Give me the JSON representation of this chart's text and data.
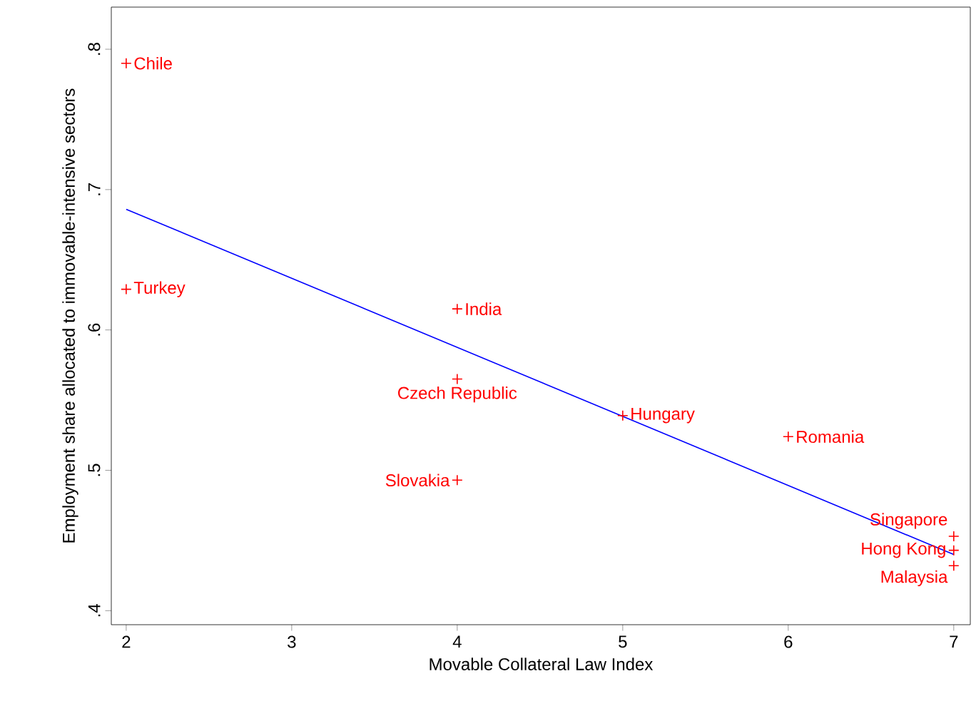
{
  "chart_data": {
    "type": "scatter",
    "xlabel": "Movable Collateral Law Index",
    "ylabel": "Employment share allocated to immovable-intensive sectors",
    "xlim": [
      1.91,
      7.1
    ],
    "ylim": [
      0.39,
      0.83
    ],
    "xticks": [
      2,
      3,
      4,
      5,
      6,
      7
    ],
    "yticks": [
      {
        "value": 0.4,
        "label": ".4"
      },
      {
        "value": 0.5,
        "label": ".5"
      },
      {
        "value": 0.6,
        "label": ".6"
      },
      {
        "value": 0.7,
        "label": ".7"
      },
      {
        "value": 0.8,
        "label": ".8"
      }
    ],
    "grid": false,
    "series": [
      {
        "marker": "cross",
        "color": "#ff0000",
        "x": [
          2,
          2,
          4,
          4,
          4,
          5,
          6,
          7,
          7,
          7
        ],
        "values": [
          0.79,
          0.629,
          0.615,
          0.565,
          0.493,
          0.539,
          0.524,
          0.453,
          0.443,
          0.432
        ]
      },
      {
        "type": "line",
        "color": "#0000ff",
        "x": [
          2,
          7
        ],
        "values": [
          0.686,
          0.44
        ]
      }
    ],
    "annotations": [
      {
        "text": "Chile",
        "x": 2,
        "y": 0.79
      },
      {
        "text": "Turkey",
        "x": 2,
        "y": 0.629
      },
      {
        "text": "India",
        "x": 4,
        "y": 0.615
      },
      {
        "text": "Czech Republic",
        "x": 4,
        "y": 0.565
      },
      {
        "text": "Slovakia",
        "x": 4,
        "y": 0.493
      },
      {
        "text": "Hungary",
        "x": 5,
        "y": 0.539
      },
      {
        "text": "Romania",
        "x": 6,
        "y": 0.524
      },
      {
        "text": "Singapore",
        "x": 7,
        "y": 0.453
      },
      {
        "text": "Hong Kong",
        "x": 7,
        "y": 0.443
      },
      {
        "text": "Malaysia",
        "x": 7,
        "y": 0.432
      }
    ]
  }
}
